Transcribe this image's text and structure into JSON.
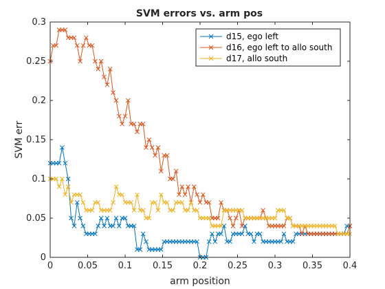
{
  "chart_data": {
    "type": "line",
    "title": "SVM errors vs. arm pos",
    "xlabel": "arm position",
    "ylabel": "SVM err",
    "xlim": [
      0,
      0.4
    ],
    "ylim": [
      0,
      0.3
    ],
    "x_ticks": [
      "0",
      "0.05",
      "0.1",
      "0.15",
      "0.2",
      "0.25",
      "0.3",
      "0.35",
      "0.4"
    ],
    "y_ticks": [
      "0",
      "0.05",
      "0.1",
      "0.15",
      "0.2",
      "0.25",
      "0.3"
    ],
    "x_tick_values": [
      0,
      0.05,
      0.1,
      0.15,
      0.2,
      0.25,
      0.3,
      0.35,
      0.4
    ],
    "y_tick_values": [
      0,
      0.05,
      0.1,
      0.15,
      0.2,
      0.25,
      0.3
    ],
    "grid": false,
    "legend_position": "top-right",
    "marker": "x",
    "x": [
      0.0,
      0.004,
      0.008,
      0.012,
      0.016,
      0.02,
      0.024,
      0.028,
      0.032,
      0.036,
      0.04,
      0.044,
      0.048,
      0.052,
      0.056,
      0.06,
      0.064,
      0.068,
      0.072,
      0.076,
      0.08,
      0.084,
      0.088,
      0.092,
      0.096,
      0.1,
      0.104,
      0.108,
      0.112,
      0.116,
      0.12,
      0.124,
      0.128,
      0.132,
      0.136,
      0.14,
      0.144,
      0.148,
      0.152,
      0.156,
      0.16,
      0.164,
      0.168,
      0.172,
      0.176,
      0.18,
      0.184,
      0.188,
      0.192,
      0.196,
      0.2,
      0.204,
      0.208,
      0.212,
      0.216,
      0.22,
      0.224,
      0.228,
      0.232,
      0.236,
      0.24,
      0.244,
      0.248,
      0.252,
      0.256,
      0.26,
      0.264,
      0.268,
      0.272,
      0.276,
      0.28,
      0.284,
      0.288,
      0.292,
      0.296,
      0.3,
      0.304,
      0.308,
      0.312,
      0.316,
      0.32,
      0.324,
      0.328,
      0.332,
      0.336,
      0.34,
      0.344,
      0.348,
      0.352,
      0.356,
      0.36,
      0.364,
      0.368,
      0.372,
      0.376,
      0.38,
      0.384,
      0.388,
      0.392,
      0.396,
      0.4
    ],
    "series": [
      {
        "name": "d15, ego left",
        "color": "#0072BD",
        "values": [
          0.12,
          0.12,
          0.12,
          0.12,
          0.14,
          0.12,
          0.1,
          0.05,
          0.04,
          0.07,
          0.05,
          0.04,
          0.03,
          0.03,
          0.03,
          0.03,
          0.04,
          0.05,
          0.04,
          0.05,
          0.04,
          0.04,
          0.05,
          0.04,
          0.05,
          0.05,
          0.04,
          0.04,
          0.04,
          0.01,
          0.01,
          0.03,
          0.02,
          0.01,
          0.01,
          0.01,
          0.01,
          0.01,
          0.02,
          0.02,
          0.02,
          0.02,
          0.02,
          0.02,
          0.02,
          0.02,
          0.02,
          0.02,
          0.02,
          0.02,
          0.0,
          0.0,
          0.0,
          0.02,
          0.03,
          0.02,
          0.03,
          0.03,
          0.04,
          0.02,
          0.02,
          0.03,
          0.03,
          0.03,
          0.03,
          0.04,
          0.03,
          0.03,
          0.02,
          0.03,
          0.03,
          0.02,
          0.02,
          0.02,
          0.02,
          0.02,
          0.02,
          0.02,
          0.03,
          0.02,
          0.02,
          0.02,
          0.03,
          0.03,
          0.03,
          0.03,
          0.03,
          0.03,
          0.03,
          0.03,
          0.03,
          0.03,
          0.03,
          0.03,
          0.03,
          0.03,
          0.03,
          0.03,
          0.03,
          0.04,
          0.04
        ]
      },
      {
        "name": "d16, ego left to allo south",
        "color": "#D95319",
        "values": [
          0.25,
          0.27,
          0.27,
          0.29,
          0.29,
          0.29,
          0.28,
          0.28,
          0.28,
          0.27,
          0.25,
          0.27,
          0.28,
          0.27,
          0.27,
          0.25,
          0.24,
          0.25,
          0.23,
          0.22,
          0.24,
          0.21,
          0.2,
          0.18,
          0.17,
          0.18,
          0.2,
          0.17,
          0.17,
          0.16,
          0.17,
          0.17,
          0.14,
          0.15,
          0.14,
          0.13,
          0.14,
          0.11,
          0.13,
          0.13,
          0.1,
          0.1,
          0.11,
          0.08,
          0.09,
          0.08,
          0.09,
          0.07,
          0.09,
          0.08,
          0.07,
          0.08,
          0.07,
          0.07,
          0.05,
          0.05,
          0.05,
          0.07,
          0.06,
          0.06,
          0.05,
          0.04,
          0.05,
          0.06,
          0.04,
          0.05,
          0.05,
          0.05,
          0.05,
          0.05,
          0.05,
          0.06,
          0.05,
          0.04,
          0.04,
          0.04,
          0.04,
          0.04,
          0.04,
          0.05,
          0.05,
          0.04,
          0.04,
          0.04,
          0.03,
          0.04,
          0.03,
          0.03,
          0.03,
          0.03,
          0.03,
          0.03,
          0.03,
          0.03,
          0.03,
          0.03,
          0.03,
          0.03,
          0.03,
          0.03,
          0.04
        ]
      },
      {
        "name": "d17, allo south",
        "color": "#EDB120",
        "values": [
          0.1,
          0.1,
          0.1,
          0.09,
          0.1,
          0.08,
          0.09,
          0.07,
          0.08,
          0.08,
          0.08,
          0.07,
          0.06,
          0.06,
          0.06,
          0.07,
          0.07,
          0.06,
          0.06,
          0.06,
          0.06,
          0.07,
          0.09,
          0.08,
          0.08,
          0.07,
          0.07,
          0.07,
          0.06,
          0.08,
          0.06,
          0.06,
          0.05,
          0.05,
          0.07,
          0.07,
          0.06,
          0.08,
          0.07,
          0.07,
          0.06,
          0.06,
          0.07,
          0.07,
          0.07,
          0.06,
          0.06,
          0.07,
          0.06,
          0.06,
          0.05,
          0.05,
          0.05,
          0.05,
          0.04,
          0.04,
          0.04,
          0.04,
          0.06,
          0.06,
          0.06,
          0.06,
          0.06,
          0.06,
          0.06,
          0.05,
          0.05,
          0.05,
          0.05,
          0.05,
          0.05,
          0.05,
          0.05,
          0.05,
          0.05,
          0.05,
          0.06,
          0.06,
          0.06,
          0.05,
          0.05,
          0.04,
          0.04,
          0.04,
          0.04,
          0.04,
          0.04,
          0.04,
          0.04,
          0.04,
          0.04,
          0.04,
          0.04,
          0.04,
          0.04,
          0.04,
          0.03,
          0.03,
          0.03,
          0.03,
          0.03
        ]
      }
    ]
  }
}
